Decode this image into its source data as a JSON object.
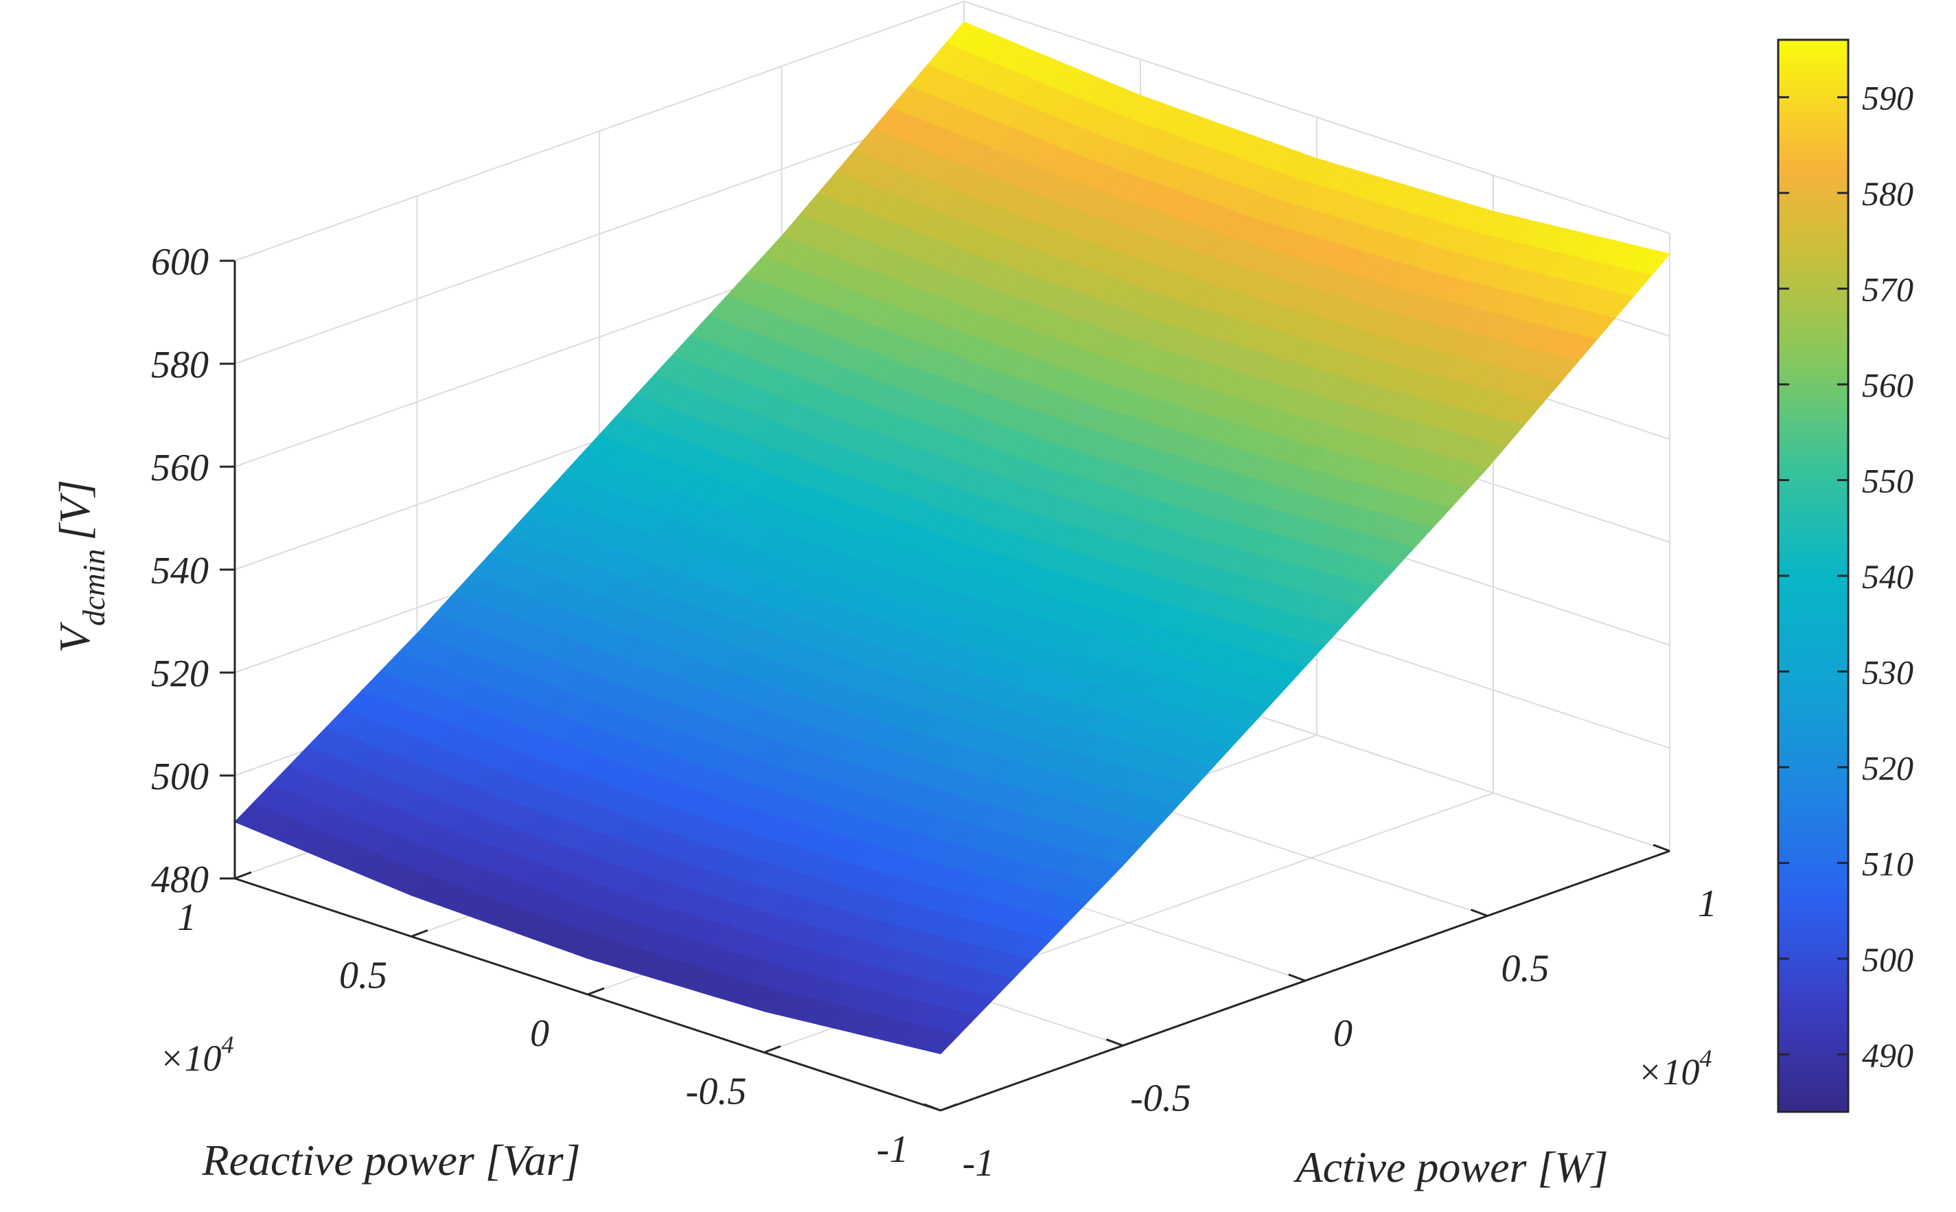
{
  "chart_data": {
    "type": "surface",
    "xlabel": "Active power [W]",
    "ylabel": "Reactive power [Var]",
    "zlabel": {
      "base": "V",
      "subscript": "dcmin",
      "unit": "[V]"
    },
    "x_ticks": [
      "-1",
      "-0.5",
      "0",
      "0.5",
      "1"
    ],
    "y_ticks": [
      "-1",
      "-0.5",
      "0",
      "0.5",
      "1"
    ],
    "z_ticks": [
      "480",
      "500",
      "520",
      "540",
      "560",
      "580",
      "600"
    ],
    "x_exponent": {
      "base": "×10",
      "power": "4"
    },
    "y_exponent": {
      "base": "×10",
      "power": "4"
    },
    "xlim": [
      -10000,
      10000
    ],
    "ylim": [
      -10000,
      10000
    ],
    "zlim": [
      480,
      600
    ],
    "x": [
      -10000,
      -5000,
      0,
      5000,
      10000
    ],
    "y": [
      -10000,
      -5000,
      0,
      5000,
      10000
    ],
    "z": [
      [
        491,
        488,
        487,
        488,
        491
      ],
      [
        515,
        513,
        512,
        513,
        515
      ],
      [
        541,
        539,
        538,
        539,
        541
      ],
      [
        567,
        565,
        564,
        565,
        567
      ],
      [
        596,
        593,
        592,
        593,
        596
      ]
    ],
    "colorbar": {
      "ticks": [
        "490",
        "500",
        "510",
        "520",
        "530",
        "540",
        "550",
        "560",
        "570",
        "580",
        "590"
      ],
      "range": [
        484,
        596
      ],
      "colormap": "parula"
    },
    "grid": true
  }
}
